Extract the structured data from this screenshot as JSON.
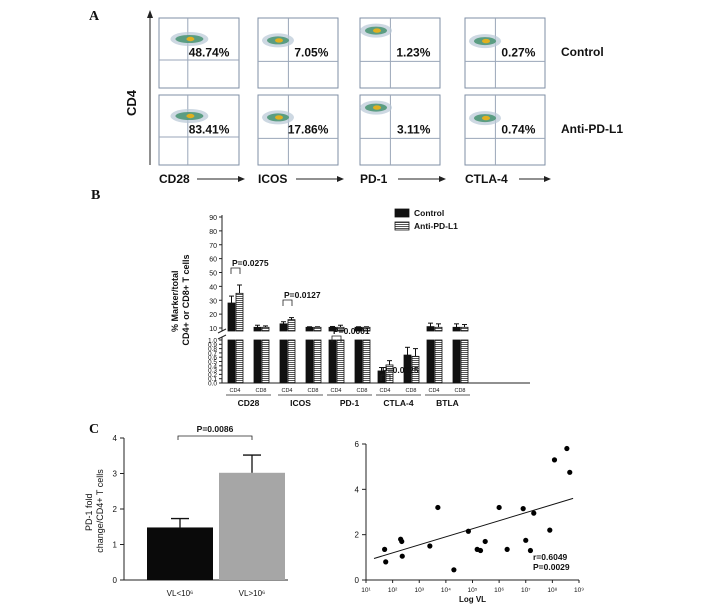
{
  "panels": {
    "a": "A",
    "b": "B",
    "c": "C"
  },
  "facs": {
    "y_axis_label": "CD4",
    "markers": [
      "CD28",
      "ICOS",
      "PD-1",
      "CTLA-4"
    ],
    "rows": [
      {
        "label": "Control",
        "values": [
          "48.74%",
          "7.05%",
          "1.23%",
          "0.27%"
        ]
      },
      {
        "label": "Anti-PD-L1",
        "values": [
          "83.41%",
          "17.86%",
          "3.11%",
          "0.74%"
        ]
      }
    ]
  },
  "chart_data": [
    {
      "type": "bar",
      "panel": "B",
      "ylabel": "% Marker/total CD4+ or CD8+ T cells",
      "ylabel_lines": [
        "% Marker/total",
        "CD4+ or CD8+ T cells"
      ],
      "y_axis": "broken",
      "y_upper_ticks": [
        10,
        20,
        30,
        40,
        50,
        60,
        70,
        80,
        90
      ],
      "y_lower_ticks": [
        "0.0",
        "0.1",
        "0.2",
        "0.3",
        "0.4",
        "0.5",
        "0.6",
        "0.7",
        "0.8",
        "0.9",
        "1.0"
      ],
      "groups": [
        "CD28",
        "ICOS",
        "PD-1",
        "CTLA-4",
        "BTLA"
      ],
      "subgroups": [
        "CD4",
        "CD8"
      ],
      "series": [
        {
          "name": "Control",
          "color": "#111111",
          "values": [
            28,
            7,
            13,
            2.7,
            5.5,
            2.8,
            0.28,
            0.65,
            11,
            9
          ],
          "errors": [
            5,
            1.5,
            1.5,
            0.4,
            0.6,
            0.4,
            0.08,
            0.18,
            2.5,
            2.5
          ]
        },
        {
          "name": "Anti-PD-L1",
          "pattern": "hatched",
          "values": [
            35,
            6.5,
            16,
            2.7,
            9,
            2.8,
            0.42,
            0.62,
            9,
            7
          ],
          "errors": [
            6,
            1,
            1.5,
            0.4,
            1.5,
            0.4,
            0.1,
            0.18,
            2.5,
            2
          ]
        }
      ],
      "annotations": [
        {
          "group": "CD28",
          "text": "P=0.0275"
        },
        {
          "group": "ICOS",
          "text": "P=0.0127"
        },
        {
          "group": "PD-1",
          "text": "P=0.0001"
        },
        {
          "group": "CTLA-4",
          "text": "P=0.0025"
        }
      ],
      "legend_position": "top-right"
    },
    {
      "type": "bar",
      "panel": "C-left",
      "ylabel": "PD-1 fold change/CD4+ T cells",
      "ylabel_lines": [
        "PD-1 fold",
        "change/CD4+ T cells"
      ],
      "categories": [
        "VL<10⁶",
        "VL>10⁶"
      ],
      "values": [
        1.48,
        3.02
      ],
      "errors": [
        0.25,
        0.5
      ],
      "colors": [
        "#0a0a0a",
        "#a6a6a6"
      ],
      "ylim": [
        0,
        4
      ],
      "yticks": [
        0,
        1,
        2,
        3,
        4
      ],
      "annotation": "P=0.0086"
    },
    {
      "type": "scatter",
      "panel": "C-right",
      "xlabel": "Log VL",
      "x_scale": "log",
      "xlim": [
        10,
        1000000000
      ],
      "xtick_labels": [
        "10¹",
        "10²",
        "10³",
        "10⁴",
        "10⁵",
        "10⁶",
        "10⁷",
        "10⁸",
        "10⁹"
      ],
      "ylim": [
        0,
        6
      ],
      "yticks": [
        0,
        2,
        4,
        6
      ],
      "points": [
        [
          50,
          1.35
        ],
        [
          55,
          0.8
        ],
        [
          200,
          1.8
        ],
        [
          220,
          1.7
        ],
        [
          230,
          1.05
        ],
        [
          2500,
          1.5
        ],
        [
          5000,
          3.2
        ],
        [
          20000,
          0.45
        ],
        [
          70000,
          2.15
        ],
        [
          150000,
          1.35
        ],
        [
          200000,
          1.3
        ],
        [
          300000,
          1.7
        ],
        [
          1000000,
          3.2
        ],
        [
          2000000,
          1.35
        ],
        [
          8000000,
          3.15
        ],
        [
          10000000,
          1.75
        ],
        [
          15000000,
          1.3
        ],
        [
          20000000,
          2.95
        ],
        [
          80000000,
          2.2
        ],
        [
          120000000,
          5.3
        ],
        [
          350000000,
          5.8
        ],
        [
          450000000,
          4.75
        ]
      ],
      "fit_line": [
        [
          20,
          0.95
        ],
        [
          600000000,
          3.6
        ]
      ],
      "stats": [
        "r=0.6049",
        "P=0.0029"
      ]
    }
  ]
}
